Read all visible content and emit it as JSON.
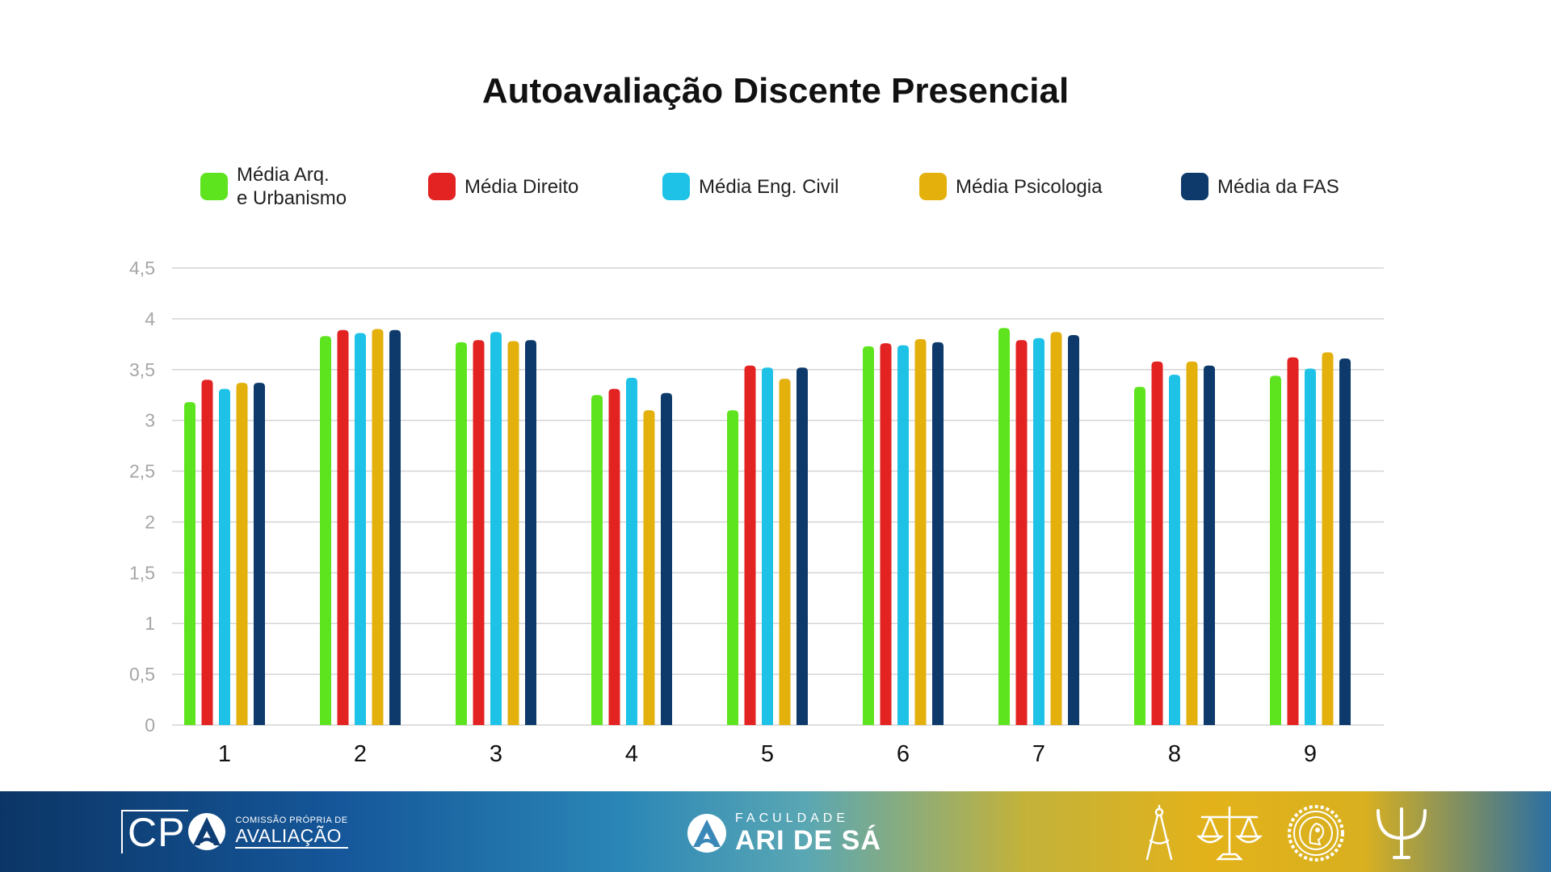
{
  "chart_data": {
    "type": "bar",
    "title": "Autoavaliação Discente Presencial",
    "xlabel": "",
    "ylabel": "",
    "ylim": [
      0,
      4.5
    ],
    "yticks": [
      "0",
      "0,5",
      "1",
      "1,5",
      "2",
      "2,5",
      "3",
      "3,5",
      "4",
      "4,5"
    ],
    "grid": true,
    "legend_position": "top",
    "categories": [
      "1",
      "2",
      "3",
      "4",
      "5",
      "6",
      "7",
      "8",
      "9"
    ],
    "series": [
      {
        "name": "Média Arq.\ne Urbanismo",
        "color": "#5ee41e",
        "values": [
          3.18,
          3.83,
          3.77,
          3.25,
          3.1,
          3.73,
          3.91,
          3.33,
          3.44
        ]
      },
      {
        "name": "Média Direito",
        "color": "#e32222",
        "values": [
          3.4,
          3.89,
          3.79,
          3.31,
          3.54,
          3.76,
          3.79,
          3.58,
          3.62
        ]
      },
      {
        "name": "Média Eng. Civil",
        "color": "#1ec2e6",
        "values": [
          3.31,
          3.86,
          3.87,
          3.42,
          3.52,
          3.74,
          3.81,
          3.45,
          3.51
        ]
      },
      {
        "name": "Média Psicologia",
        "color": "#e3b00c",
        "values": [
          3.37,
          3.9,
          3.78,
          3.1,
          3.41,
          3.8,
          3.87,
          3.58,
          3.67
        ]
      },
      {
        "name": "Média da FAS",
        "color": "#0d3a6b",
        "values": [
          3.37,
          3.89,
          3.79,
          3.27,
          3.52,
          3.77,
          3.84,
          3.54,
          3.61
        ]
      }
    ]
  },
  "footer": {
    "cpa_mark": "CP",
    "cpa_small": "COMISSÃO PRÓPRIA DE",
    "cpa_big": "AVALIAÇÃO",
    "fas_small": "FACULDADE",
    "fas_big": "ARI DE SÁ",
    "icons": [
      "compass-icon",
      "scales-of-justice-icon",
      "engineering-gear-seal-icon",
      "psi-icon"
    ]
  }
}
